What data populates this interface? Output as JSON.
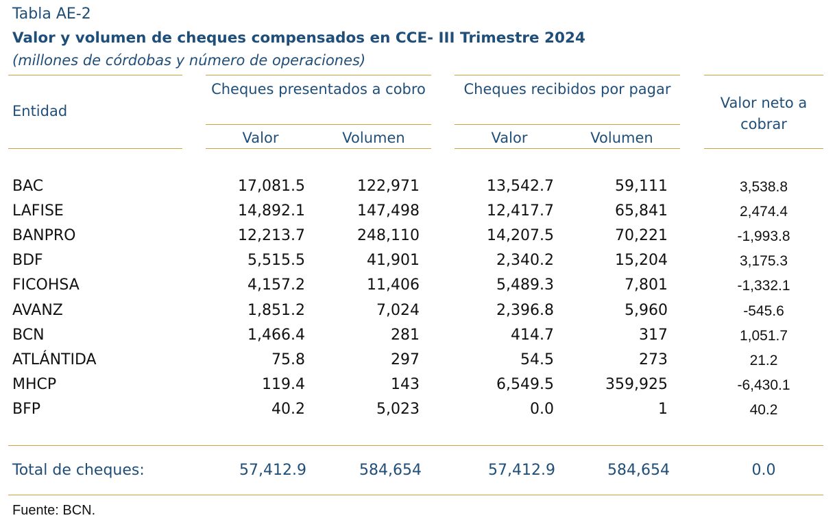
{
  "header": {
    "label": "Tabla AE-2",
    "title": "Valor y volumen de cheques compensados en CCE- III Trimestre 2024",
    "subtitle": "(millones de córdobas y número de operaciones)"
  },
  "columns": {
    "entity": "Entidad",
    "presented": "Cheques presentados a cobro",
    "received": "Cheques recibidos por pagar",
    "net": "Valor neto a cobrar",
    "value": "Valor",
    "volume": "Volumen"
  },
  "rows": [
    {
      "entity": "BAC",
      "pv": "17,081.5",
      "pq": "122,971",
      "rv": "13,542.7",
      "rq": "59,111",
      "net": "3,538.8"
    },
    {
      "entity": "LAFISE",
      "pv": "14,892.1",
      "pq": "147,498",
      "rv": "12,417.7",
      "rq": "65,841",
      "net": "2,474.4"
    },
    {
      "entity": "BANPRO",
      "pv": "12,213.7",
      "pq": "248,110",
      "rv": "14,207.5",
      "rq": "70,221",
      "net": "-1,993.8"
    },
    {
      "entity": "BDF",
      "pv": "5,515.5",
      "pq": "41,901",
      "rv": "2,340.2",
      "rq": "15,204",
      "net": "3,175.3"
    },
    {
      "entity": "FICOHSA",
      "pv": "4,157.2",
      "pq": "11,406",
      "rv": "5,489.3",
      "rq": "7,801",
      "net": "-1,332.1"
    },
    {
      "entity": "AVANZ",
      "pv": "1,851.2",
      "pq": "7,024",
      "rv": "2,396.8",
      "rq": "5,960",
      "net": "-545.6"
    },
    {
      "entity": "BCN",
      "pv": "1,466.4",
      "pq": "281",
      "rv": "414.7",
      "rq": "317",
      "net": "1,051.7"
    },
    {
      "entity": "ATLÁNTIDA",
      "pv": "75.8",
      "pq": "297",
      "rv": "54.5",
      "rq": "273",
      "net": "21.2"
    },
    {
      "entity": "MHCP",
      "pv": "119.4",
      "pq": "143",
      "rv": "6,549.5",
      "rq": "359,925",
      "net": "-6,430.1"
    },
    {
      "entity": "BFP",
      "pv": "40.2",
      "pq": "5,023",
      "rv": "0.0",
      "rq": "1",
      "net": "40.2"
    }
  ],
  "total": {
    "label": "Total de cheques:",
    "pv": "57,412.9",
    "pq": "584,654",
    "rv": "57,412.9",
    "rq": "584,654",
    "net": "0.0"
  },
  "footer": {
    "source": "Fuente: BCN."
  },
  "colors": {
    "navy": "#1f4e79",
    "rule": "#c9a23a",
    "text": "#111111"
  }
}
